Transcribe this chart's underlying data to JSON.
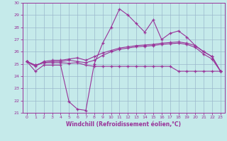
{
  "xlabel": "Windchill (Refroidissement éolien,°C)",
  "xlim": [
    -0.5,
    23.5
  ],
  "ylim": [
    21,
    30
  ],
  "yticks": [
    21,
    22,
    23,
    24,
    25,
    26,
    27,
    28,
    29,
    30
  ],
  "xticks": [
    0,
    1,
    2,
    3,
    4,
    5,
    6,
    7,
    8,
    9,
    10,
    11,
    12,
    13,
    14,
    15,
    16,
    17,
    18,
    19,
    20,
    21,
    22,
    23
  ],
  "bg_color": "#c5eaea",
  "grid_color": "#9ab8cc",
  "line_color": "#993399",
  "line1_y": [
    25.2,
    24.4,
    24.9,
    24.9,
    24.9,
    21.9,
    21.3,
    21.2,
    25.0,
    26.7,
    28.0,
    29.5,
    29.0,
    28.3,
    27.6,
    28.6,
    27.0,
    27.5,
    27.7,
    27.2,
    26.5,
    26.0,
    25.6,
    24.4
  ],
  "line2_y": [
    25.2,
    24.8,
    25.2,
    25.3,
    25.3,
    25.4,
    25.5,
    25.3,
    25.6,
    25.9,
    26.1,
    26.3,
    26.4,
    26.5,
    26.55,
    26.6,
    26.7,
    26.75,
    26.8,
    26.7,
    26.5,
    26.0,
    25.6,
    24.4
  ],
  "line3_y": [
    25.2,
    24.9,
    25.1,
    25.1,
    25.1,
    25.05,
    25.1,
    24.9,
    24.8,
    24.8,
    24.8,
    24.8,
    24.8,
    24.8,
    24.8,
    24.8,
    24.8,
    24.8,
    24.4,
    24.4,
    24.4,
    24.4,
    24.4,
    24.4
  ],
  "line4_y": [
    25.2,
    24.9,
    25.1,
    25.2,
    25.2,
    25.3,
    25.2,
    25.1,
    25.3,
    25.7,
    26.0,
    26.2,
    26.3,
    26.4,
    26.45,
    26.5,
    26.6,
    26.65,
    26.7,
    26.6,
    26.35,
    25.8,
    25.4,
    24.4
  ]
}
